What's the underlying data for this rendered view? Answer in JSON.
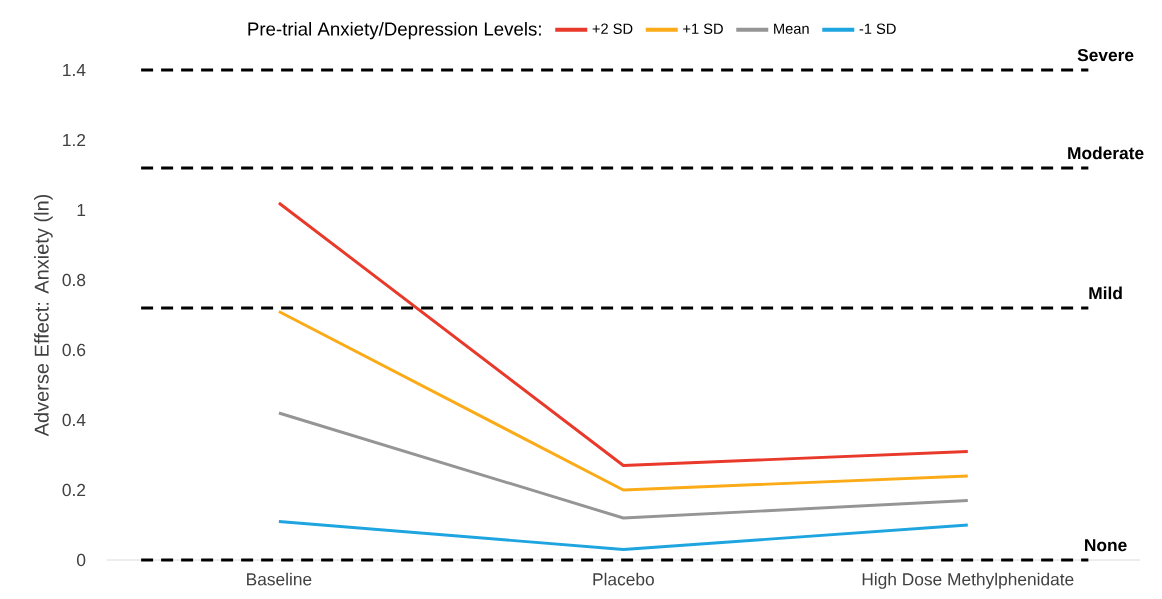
{
  "chart_data": {
    "type": "line",
    "legend_title": "Pre-trial Anxiety/Depression Levels:",
    "ylabel": "Adverse Effect: Anxiety (ln)",
    "categories": [
      "Baseline",
      "Placebo",
      "High Dose Methylphenidate"
    ],
    "series": [
      {
        "name": "+2 SD",
        "color": "#e8392a",
        "values": [
          1.02,
          0.27,
          0.31
        ]
      },
      {
        "name": "+1 SD",
        "color": "#fbab18",
        "values": [
          0.71,
          0.2,
          0.24
        ]
      },
      {
        "name": "Mean",
        "color": "#959595",
        "values": [
          0.42,
          0.12,
          0.17
        ]
      },
      {
        "name": "-1 SD",
        "color": "#1ea5e0",
        "values": [
          0.11,
          0.03,
          0.1
        ]
      }
    ],
    "ylim": [
      0,
      1.4
    ],
    "yticks": [
      0,
      0.2,
      0.4,
      0.6,
      0.8,
      1,
      1.2,
      1.4
    ],
    "ref_lines": [
      {
        "axis": "y",
        "value": 1.4,
        "label": "Severe",
        "color": "#000000",
        "line_style": "dashed"
      },
      {
        "axis": "y",
        "value": 1.12,
        "label": "Moderate",
        "color": "#000000",
        "line_style": "dashed"
      },
      {
        "axis": "y",
        "value": 0.72,
        "label": "Mild",
        "color": "#000000",
        "line_style": "dashed"
      },
      {
        "axis": "y",
        "value": 0,
        "label": "None",
        "color": "#000000",
        "line_style": "dashed"
      }
    ],
    "legend": "top",
    "grid": false
  }
}
